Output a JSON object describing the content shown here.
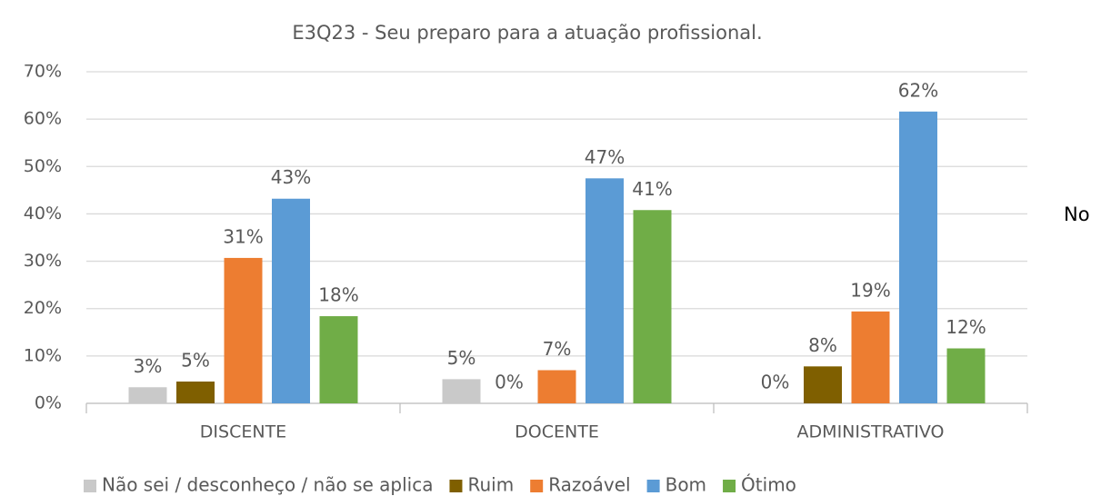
{
  "chart_data": {
    "type": "bar",
    "title": "E3Q23 - Seu preparo para a atuação profissional.",
    "annotation": "No",
    "categories": [
      "DISCENTE",
      "DOCENTE",
      "ADMINISTRATIVO"
    ],
    "series": [
      {
        "name": "Não sei / desconheço / não se aplica",
        "color": "#c9c9c9",
        "values": [
          3.4,
          5.1,
          0
        ],
        "value_labels": [
          "3%",
          "5%",
          "0%"
        ]
      },
      {
        "name": "Ruim",
        "color": "#7f5f00",
        "values": [
          4.6,
          0,
          7.8
        ],
        "value_labels": [
          "5%",
          "0%",
          "8%"
        ]
      },
      {
        "name": "Razoável",
        "color": "#ed7d31",
        "values": [
          30.7,
          7.0,
          19.4
        ],
        "value_labels": [
          "31%",
          "7%",
          "19%"
        ]
      },
      {
        "name": "Bom",
        "color": "#5b9bd5",
        "values": [
          43.2,
          47.5,
          61.6
        ],
        "value_labels": [
          "43%",
          "47%",
          "62%"
        ]
      },
      {
        "name": "Ótimo",
        "color": "#70ad47",
        "values": [
          18.4,
          40.8,
          11.6
        ],
        "value_labels": [
          "18%",
          "41%",
          "12%"
        ]
      }
    ],
    "ylim": [
      0,
      70
    ],
    "yticks": [
      {
        "value": 0,
        "label": "0%"
      },
      {
        "value": 10,
        "label": "10%"
      },
      {
        "value": 20,
        "label": "20%"
      },
      {
        "value": 30,
        "label": "30%"
      },
      {
        "value": 40,
        "label": "40%"
      },
      {
        "value": 50,
        "label": "50%"
      },
      {
        "value": 60,
        "label": "60%"
      },
      {
        "value": 70,
        "label": "70%"
      }
    ],
    "grid": true,
    "legend": "bottom"
  }
}
